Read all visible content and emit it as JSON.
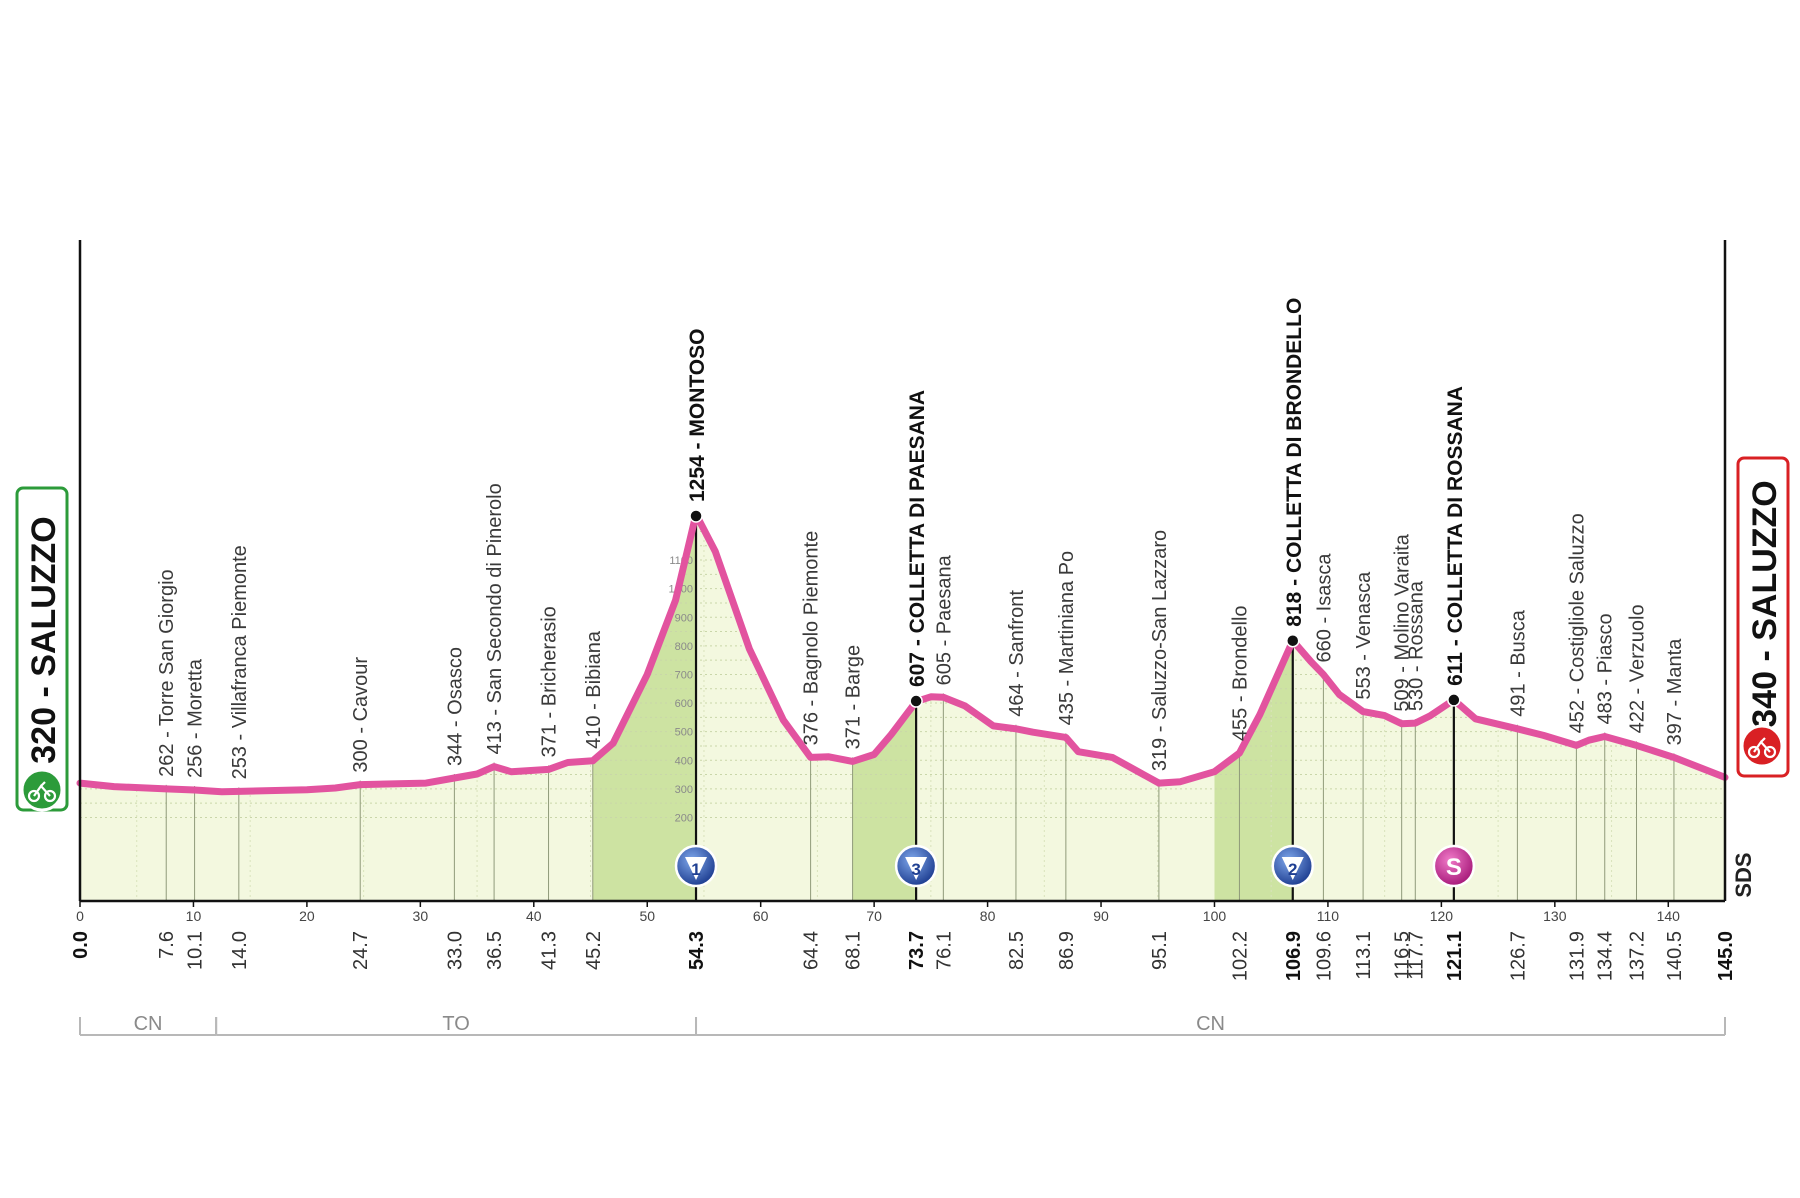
{
  "chart_data": {
    "type": "area",
    "title": "",
    "xlabel": "",
    "ylabel": "",
    "xlim": [
      0,
      145
    ],
    "x_ticks": [
      0,
      10,
      20,
      30,
      40,
      50,
      60,
      70,
      80,
      90,
      100,
      110,
      120,
      130,
      140
    ],
    "start": {
      "label": "320 - SALUZZO",
      "km": "0.0",
      "elevation": 320
    },
    "finish": {
      "label": "340 - SALUZZO",
      "km": "145.0",
      "elevation": 340
    },
    "profile": [
      [
        0,
        320
      ],
      [
        3,
        308
      ],
      [
        7.6,
        300
      ],
      [
        10.1,
        296
      ],
      [
        12.5,
        290
      ],
      [
        14,
        291
      ],
      [
        20,
        297
      ],
      [
        22.5,
        303
      ],
      [
        24.7,
        315
      ],
      [
        28,
        318
      ],
      [
        30.5,
        320
      ],
      [
        33,
        338
      ],
      [
        35,
        352
      ],
      [
        36.5,
        378
      ],
      [
        38,
        360
      ],
      [
        41.3,
        368
      ],
      [
        43,
        392
      ],
      [
        45.2,
        398
      ],
      [
        47,
        460
      ],
      [
        50,
        700
      ],
      [
        52.5,
        960
      ],
      [
        54.3,
        1260
      ],
      [
        56,
        1130
      ],
      [
        59,
        790
      ],
      [
        62,
        540
      ],
      [
        64.4,
        410
      ],
      [
        66,
        412
      ],
      [
        68.1,
        396
      ],
      [
        70,
        420
      ],
      [
        71.5,
        490
      ],
      [
        73.7,
        605
      ],
      [
        75,
        622
      ],
      [
        76.1,
        620
      ],
      [
        78,
        590
      ],
      [
        80.5,
        520
      ],
      [
        82.5,
        510
      ],
      [
        84,
        498
      ],
      [
        86.9,
        480
      ],
      [
        88,
        430
      ],
      [
        91,
        410
      ],
      [
        95.1,
        320
      ],
      [
        97,
        325
      ],
      [
        100,
        360
      ],
      [
        102.2,
        425
      ],
      [
        104,
        560
      ],
      [
        106.9,
        818
      ],
      [
        108.5,
        745
      ],
      [
        109.6,
        700
      ],
      [
        111,
        630
      ],
      [
        113.1,
        570
      ],
      [
        115,
        556
      ],
      [
        116.5,
        528
      ],
      [
        117.7,
        530
      ],
      [
        119,
        555
      ],
      [
        121.1,
        611
      ],
      [
        123,
        545
      ],
      [
        126.7,
        510
      ],
      [
        129,
        487
      ],
      [
        131.9,
        452
      ],
      [
        133,
        470
      ],
      [
        134.4,
        483
      ],
      [
        137.2,
        452
      ],
      [
        140.5,
        410
      ],
      [
        145,
        340
      ]
    ],
    "climbs": [
      {
        "km": 54.3,
        "elevation": 1254,
        "label": "1254 - MONTOSO",
        "category": "1",
        "start_km": 45.2
      },
      {
        "km": 73.7,
        "elevation": 607,
        "label": "607 - COLLETTA DI PAESANA",
        "category": "3",
        "start_km": 68.1
      },
      {
        "km": 106.9,
        "elevation": 818,
        "label": "818 - COLLETTA DI BRONDELLO",
        "category": "2",
        "start_km": 100.0
      },
      {
        "km": 121.1,
        "elevation": 611,
        "label": "611 - COLLETTA DI ROSSANA",
        "category": "S",
        "start_km": null
      }
    ],
    "waypoints": [
      {
        "km": 7.6,
        "km_label": "7.6",
        "label": "262 - Torre San Giorgio"
      },
      {
        "km": 10.1,
        "km_label": "10.1",
        "label": "256 - Moretta"
      },
      {
        "km": 14.0,
        "km_label": "14.0",
        "label": "253 - Villafranca Piemonte"
      },
      {
        "km": 24.7,
        "km_label": "24.7",
        "label": "300 - Cavour"
      },
      {
        "km": 33.0,
        "km_label": "33.0",
        "label": "344 - Osasco"
      },
      {
        "km": 36.5,
        "km_label": "36.5",
        "label": "413 - San Secondo di Pinerolo"
      },
      {
        "km": 41.3,
        "km_label": "41.3",
        "label": "371 - Bricherasio"
      },
      {
        "km": 45.2,
        "km_label": "45.2",
        "label": "410 - Bibiana"
      },
      {
        "km": 64.4,
        "km_label": "64.4",
        "label": "376 - Bagnolo Piemonte"
      },
      {
        "km": 68.1,
        "km_label": "68.1",
        "label": "371 - Barge"
      },
      {
        "km": 76.1,
        "km_label": "76.1",
        "label": "605 - Paesana"
      },
      {
        "km": 82.5,
        "km_label": "82.5",
        "label": "464 - Sanfront"
      },
      {
        "km": 86.9,
        "km_label": "86.9",
        "label": "435 - Martiniana Po"
      },
      {
        "km": 95.1,
        "km_label": "95.1",
        "label": "319 - Saluzzo-San Lazzaro"
      },
      {
        "km": 102.2,
        "km_label": "102.2",
        "label": "455 - Brondello"
      },
      {
        "km": 109.6,
        "km_label": "109.6",
        "label": "660 - Isasca"
      },
      {
        "km": 113.1,
        "km_label": "113.1",
        "label": "553 - Venasca"
      },
      {
        "km": 116.5,
        "km_label": "116.5",
        "label": "509 - Molino Varaita"
      },
      {
        "km": 117.7,
        "km_label": "117.7",
        "label": "530 - Rossana"
      },
      {
        "km": 126.7,
        "km_label": "126.7",
        "label": "491 - Busca"
      },
      {
        "km": 131.9,
        "km_label": "131.9",
        "label": "452 - Costigliole Saluzzo"
      },
      {
        "km": 134.4,
        "km_label": "134.4",
        "label": "483 - Piasco"
      },
      {
        "km": 137.2,
        "km_label": "137.2",
        "label": "422 - Verzuolo"
      },
      {
        "km": 140.5,
        "km_label": "140.5",
        "label": "397 - Manta"
      }
    ],
    "bold_km_labels": [
      "0.0",
      "54.3",
      "73.7",
      "106.9",
      "121.1",
      "145.0"
    ],
    "altitude_gauge": [
      200,
      300,
      400,
      500,
      600,
      700,
      800,
      900,
      1000,
      1100
    ],
    "provinces": [
      {
        "label": "CN",
        "from_km": 0,
        "to_km": 12
      },
      {
        "label": "TO",
        "from_km": 12,
        "to_km": 54.3
      },
      {
        "label": "CN",
        "from_km": 54.3,
        "to_km": 145
      }
    ],
    "colors": {
      "profile_line": "#e2539f",
      "fill_base": "#f3f8df",
      "fill_climb": "#cde3a2",
      "start_sign": "#2c9b3a",
      "finish_sign": "#d92024",
      "sprint": "#cc2a96",
      "kom": "#2e57b0"
    },
    "logo": "SDS"
  }
}
